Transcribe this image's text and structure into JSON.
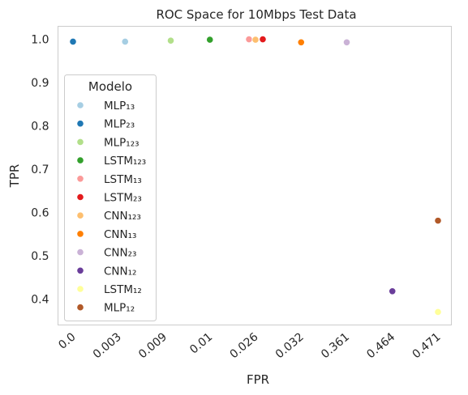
{
  "chart_data": {
    "type": "scatter",
    "title": "ROC Space for 10Mbps Test Data",
    "xlabel": "FPR",
    "ylabel": "TPR",
    "x_axis_kind": "categorical",
    "x_tick_labels": [
      "0.0",
      "0.003",
      "0.009",
      "0.01",
      "0.026",
      "0.032",
      "0.361",
      "0.464",
      "0.471"
    ],
    "y_ticks": [
      0.4,
      0.5,
      0.6,
      0.7,
      0.8,
      0.9,
      1.0
    ],
    "y_tick_labels": [
      "0.4",
      "0.5",
      "0.6",
      "0.7",
      "0.8",
      "0.9",
      "1.0"
    ],
    "ylim": [
      0.34,
      1.03
    ],
    "grid": false,
    "legend_title": "Modelo",
    "legend_placement": "center-left",
    "series": [
      {
        "name": "MLP₁₃",
        "color": "#a6cee3",
        "x": 0.003,
        "y": 0.9945
      },
      {
        "name": "MLP₂₃",
        "color": "#1f78b4",
        "x": 0.0,
        "y": 0.9945
      },
      {
        "name": "MLP₁₂₃",
        "color": "#b2df8a",
        "x": 0.009,
        "y": 0.997
      },
      {
        "name": "LSTM₁₂₃",
        "color": "#33a02c",
        "x": 0.01,
        "y": 0.999
      },
      {
        "name": "LSTM₁₃",
        "color": "#fb9a99",
        "x": 0.026,
        "y": 1.0
      },
      {
        "name": "LSTM₂₃",
        "color": "#e31a1c",
        "x": 0.026,
        "y": 1.0
      },
      {
        "name": "CNN₁₂₃",
        "color": "#fdbf6f",
        "x": 0.026,
        "y": 0.999
      },
      {
        "name": "CNN₁₃",
        "color": "#ff7f00",
        "x": 0.032,
        "y": 0.993
      },
      {
        "name": "CNN₂₃",
        "color": "#cab2d6",
        "x": 0.361,
        "y": 0.993
      },
      {
        "name": "CNN₁₂",
        "color": "#6a3d9a",
        "x": 0.464,
        "y": 0.418
      },
      {
        "name": "LSTM₁₂",
        "color": "#ffff99",
        "x": 0.471,
        "y": 0.37
      },
      {
        "name": "MLP₁₂",
        "color": "#b15928",
        "x": 0.471,
        "y": 0.581
      }
    ]
  }
}
